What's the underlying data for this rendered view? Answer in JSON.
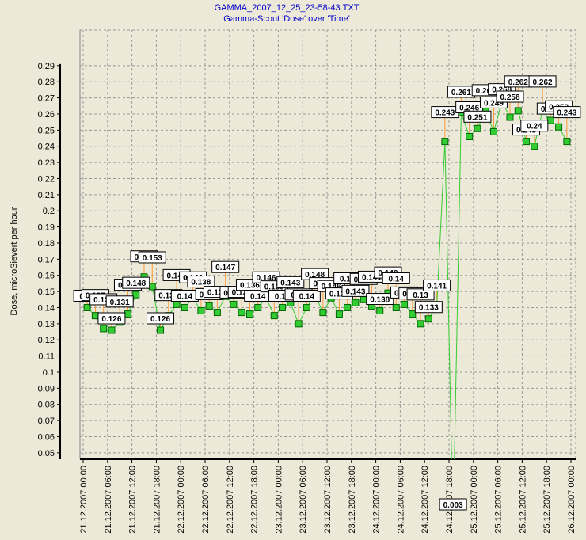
{
  "chart_data": {
    "type": "line",
    "title": "GAMMA_2007_12_25_23-58-43.TXT",
    "subtitle": "Gamma-Scout 'Dose' over 'Time'",
    "y_label": "Dose, microSievert per hour",
    "x": [
      "21.12.2007 01:00",
      "21.12.2007 03:00",
      "21.12.2007 05:00",
      "21.12.2007 07:00",
      "21.12.2007 09:00",
      "21.12.2007 11:00",
      "21.12.2007 13:00",
      "21.12.2007 15:00",
      "21.12.2007 17:00",
      "21.12.2007 19:00",
      "21.12.2007 21:00",
      "21.12.2007 23:00",
      "22.12.2007 01:00",
      "22.12.2007 03:00",
      "22.12.2007 05:00",
      "22.12.2007 07:00",
      "22.12.2007 09:00",
      "22.12.2007 11:00",
      "22.12.2007 13:00",
      "22.12.2007 15:00",
      "22.12.2007 17:00",
      "22.12.2007 19:00",
      "22.12.2007 21:00",
      "22.12.2007 23:00",
      "23.12.2007 01:00",
      "23.12.2007 03:00",
      "23.12.2007 05:00",
      "23.12.2007 07:00",
      "23.12.2007 09:00",
      "23.12.2007 11:00",
      "23.12.2007 13:00",
      "23.12.2007 15:00",
      "23.12.2007 17:00",
      "23.12.2007 19:00",
      "23.12.2007 21:00",
      "23.12.2007 23:00",
      "24.12.2007 01:00",
      "24.12.2007 03:00",
      "24.12.2007 05:00",
      "24.12.2007 07:00",
      "24.12.2007 09:00",
      "24.12.2007 11:00",
      "24.12.2007 13:00",
      "24.12.2007 15:00",
      "24.12.2007 17:00",
      "24.12.2007 19:00",
      "24.12.2007 21:00",
      "24.12.2007 23:00",
      "25.12.2007 01:00",
      "25.12.2007 03:00",
      "25.12.2007 05:00",
      "25.12.2007 07:00",
      "25.12.2007 09:00",
      "25.12.2007 11:00",
      "25.12.2007 13:00",
      "25.12.2007 15:00",
      "25.12.2007 17:00",
      "25.12.2007 19:00",
      "25.12.2007 21:00",
      "25.12.2007 23:00"
    ],
    "series": [
      {
        "name": "Dose",
        "color": "#33cc33",
        "values": [
          0.14,
          0.135,
          0.127,
          0.126,
          0.131,
          0.136,
          0.148,
          0.159,
          0.153,
          0.126,
          0.135,
          0.142,
          0.14,
          0.146,
          0.138,
          0.141,
          0.137,
          0.147,
          0.142,
          0.137,
          0.136,
          0.14,
          0.146,
          0.135,
          0.14,
          0.143,
          0.13,
          0.14,
          0.148,
          0.137,
          0.146,
          0.136,
          0.14,
          0.143,
          0.145,
          0.141,
          0.138,
          0.149,
          0.14,
          0.142,
          0.136,
          0.13,
          0.133,
          0.141,
          0.243,
          0.003,
          0.261,
          0.246,
          0.251,
          0.262,
          0.249,
          0.268,
          0.258,
          0.262,
          0.243,
          0.24,
          0.262,
          0.256,
          0.252,
          0.243
        ]
      }
    ],
    "xlim": [
      "21.12.2007 00:00",
      "26.12.2007 00:00"
    ],
    "xticks": [
      "21.12.2007 00:00",
      "21.12.2007 06:00",
      "21.12.2007 12:00",
      "21.12.2007 18:00",
      "22.12.2007 00:00",
      "22.12.2007 06:00",
      "22.12.2007 12:00",
      "22.12.2007 18:00",
      "23.12.2007 00:00",
      "23.12.2007 06:00",
      "23.12.2007 12:00",
      "23.12.2007 18:00",
      "24.12.2007 00:00",
      "24.12.2007 06:00",
      "24.12.2007 12:00",
      "24.12.2007 18:00",
      "25.12.2007 00:00",
      "25.12.2007 06:00",
      "25.12.2007 12:00",
      "25.12.2007 18:00",
      "26.12.2007 00:00"
    ],
    "ylim": [
      0.046,
      0.312
    ],
    "yticks": [
      0.05,
      0.06,
      0.07,
      0.08,
      0.09,
      0.1,
      0.11,
      0.12,
      0.13,
      0.14,
      0.15,
      0.16,
      0.17,
      0.18,
      0.19,
      0.2,
      0.21,
      0.22,
      0.23,
      0.24,
      0.25,
      0.26,
      0.27,
      0.28,
      0.29
    ],
    "grid": true
  }
}
